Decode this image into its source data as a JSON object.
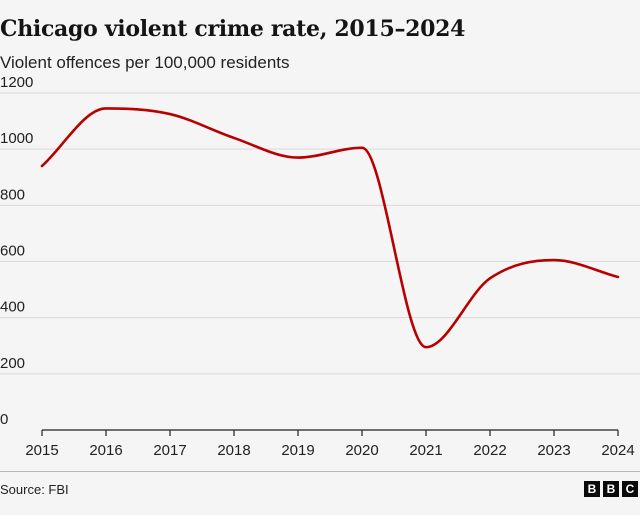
{
  "chart_data": {
    "type": "line",
    "title": "Chicago violent crime rate, 2015–2024",
    "subtitle": "Violent offences per 100,000 residents",
    "xlabel": "",
    "ylabel": "Violent offences per 100,000 residents",
    "x": [
      2015,
      2016,
      2017,
      2018,
      2019,
      2020,
      2021,
      2022,
      2023,
      2024
    ],
    "series": [
      {
        "name": "Violent crime rate",
        "values": [
          940,
          1145,
          1125,
          1040,
          970,
          1005,
          295,
          540,
          605,
          545
        ],
        "color": "#b80000"
      }
    ],
    "xticks": [
      "2015",
      "2016",
      "2017",
      "2018",
      "2019",
      "2020",
      "2021",
      "2022",
      "2023",
      "2024"
    ],
    "yticks": [
      "0",
      "200",
      "400",
      "600",
      "800",
      "1000",
      "1200"
    ],
    "ylim": [
      0,
      1200
    ],
    "xlim": [
      2015,
      2024
    ],
    "grid": true,
    "legend": "none"
  },
  "source": "Source: FBI",
  "branding": {
    "letters": [
      "B",
      "B",
      "C"
    ]
  },
  "colors": {
    "line": "#b80000",
    "grid": "#d9d9d9",
    "axis": "#222222",
    "background": "#f5f5f5"
  }
}
